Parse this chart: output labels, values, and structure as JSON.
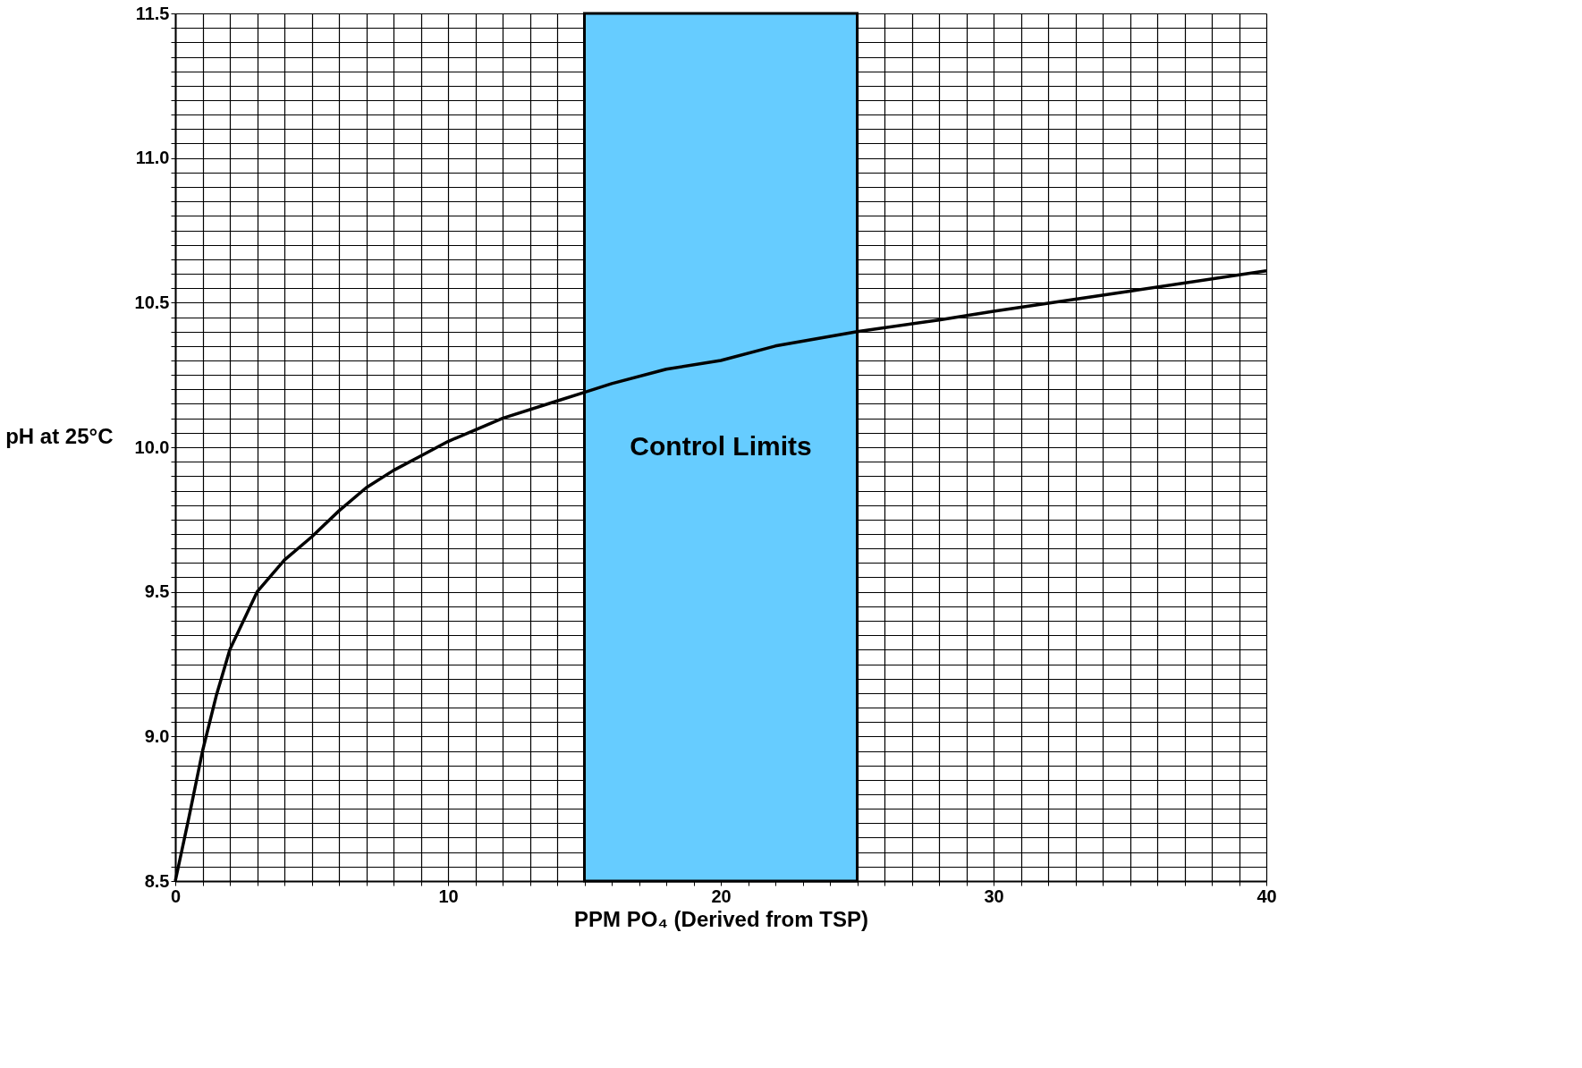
{
  "chart_data": {
    "type": "line",
    "xlabel": "PPM  PO₄  (Derived from TSP)",
    "ylabel": "pH at 25°C",
    "x": [
      0,
      0.5,
      1,
      1.5,
      2,
      3,
      4,
      5,
      6,
      7,
      8,
      9,
      10,
      11,
      12,
      14,
      15,
      16,
      18,
      20,
      22,
      25,
      28,
      30,
      35,
      40
    ],
    "series": [
      {
        "color": "#000000",
        "values": [
          8.5,
          8.72,
          8.95,
          9.14,
          9.3,
          9.5,
          9.61,
          9.69,
          9.78,
          9.86,
          9.92,
          9.97,
          10.02,
          10.06,
          10.1,
          10.16,
          10.19,
          10.22,
          10.27,
          10.3,
          10.35,
          10.4,
          10.44,
          10.47,
          10.54,
          10.61
        ]
      }
    ],
    "xlim": [
      0,
      40
    ],
    "ylim": [
      8.5,
      11.5
    ],
    "xticks": [
      0,
      {
        "value": 1,
        "label": null
      },
      {
        "value": 2,
        "label": null
      },
      {
        "value": 3,
        "label": null
      },
      {
        "value": 4,
        "label": null
      },
      {
        "value": 5,
        "label": null
      },
      {
        "value": 6,
        "label": null
      },
      {
        "value": 7,
        "label": null
      },
      {
        "value": 8,
        "label": null
      },
      {
        "value": 9,
        "label": null
      },
      10,
      {
        "value": 11,
        "label": null
      },
      {
        "value": 12,
        "label": null
      },
      {
        "value": 13,
        "label": null
      },
      {
        "value": 14,
        "label": null
      },
      {
        "value": 15,
        "label": null
      },
      {
        "value": 16,
        "label": null
      },
      {
        "value": 17,
        "label": null
      },
      {
        "value": 18,
        "label": null
      },
      {
        "value": 19,
        "label": null
      },
      20,
      {
        "value": 21,
        "label": null
      },
      {
        "value": 22,
        "label": null
      },
      {
        "value": 23,
        "label": null
      },
      {
        "value": 24,
        "label": null
      },
      {
        "value": 25,
        "label": null
      },
      {
        "value": 26,
        "label": null
      },
      {
        "value": 27,
        "label": null
      },
      {
        "value": 28,
        "label": null
      },
      {
        "value": 29,
        "label": null
      },
      30,
      {
        "value": 31,
        "label": null
      },
      {
        "value": 32,
        "label": null
      },
      {
        "value": 33,
        "label": null
      },
      {
        "value": 34,
        "label": null
      },
      {
        "value": 35,
        "label": null
      },
      {
        "value": 36,
        "label": null
      },
      {
        "value": 37,
        "label": null
      },
      {
        "value": 38,
        "label": null
      },
      {
        "value": 39,
        "label": null
      },
      40
    ],
    "yticks": [
      8.5,
      {
        "value": 8.55,
        "label": null
      },
      {
        "value": 8.6,
        "label": null
      },
      {
        "value": 8.65,
        "label": null
      },
      {
        "value": 8.7,
        "label": null
      },
      {
        "value": 8.75,
        "label": null
      },
      {
        "value": 8.8,
        "label": null
      },
      {
        "value": 8.85,
        "label": null
      },
      {
        "value": 8.9,
        "label": null
      },
      {
        "value": 8.95,
        "label": null
      },
      {
        "value": 9,
        "label": "9.0"
      },
      {
        "value": 9.05,
        "label": null
      },
      {
        "value": 9.1,
        "label": null
      },
      {
        "value": 9.15,
        "label": null
      },
      {
        "value": 9.2,
        "label": null
      },
      {
        "value": 9.25,
        "label": null
      },
      {
        "value": 9.3,
        "label": null
      },
      {
        "value": 9.35,
        "label": null
      },
      {
        "value": 9.4,
        "label": null
      },
      {
        "value": 9.45,
        "label": null
      },
      9.5,
      {
        "value": 9.55,
        "label": null
      },
      {
        "value": 9.6,
        "label": null
      },
      {
        "value": 9.65,
        "label": null
      },
      {
        "value": 9.7,
        "label": null
      },
      {
        "value": 9.75,
        "label": null
      },
      {
        "value": 9.8,
        "label": null
      },
      {
        "value": 9.85,
        "label": null
      },
      {
        "value": 9.9,
        "label": null
      },
      {
        "value": 9.95,
        "label": null
      },
      {
        "value": 10,
        "label": "10.0"
      },
      {
        "value": 10.05,
        "label": null
      },
      {
        "value": 10.1,
        "label": null
      },
      {
        "value": 10.15,
        "label": null
      },
      {
        "value": 10.2,
        "label": null
      },
      {
        "value": 10.25,
        "label": null
      },
      {
        "value": 10.3,
        "label": null
      },
      {
        "value": 10.35,
        "label": null
      },
      {
        "value": 10.4,
        "label": null
      },
      {
        "value": 10.45,
        "label": null
      },
      10.5,
      {
        "value": 10.55,
        "label": null
      },
      {
        "value": 10.6,
        "label": null
      },
      {
        "value": 10.65,
        "label": null
      },
      {
        "value": 10.7,
        "label": null
      },
      {
        "value": 10.75,
        "label": null
      },
      {
        "value": 10.8,
        "label": null
      },
      {
        "value": 10.85,
        "label": null
      },
      {
        "value": 10.9,
        "label": null
      },
      {
        "value": 10.95,
        "label": null
      },
      {
        "value": 11,
        "label": "11.0"
      },
      {
        "value": 11.05,
        "label": null
      },
      {
        "value": 11.1,
        "label": null
      },
      {
        "value": 11.15,
        "label": null
      },
      {
        "value": 11.2,
        "label": null
      },
      {
        "value": 11.25,
        "label": null
      },
      {
        "value": 11.3,
        "label": null
      },
      {
        "value": 11.35,
        "label": null
      },
      {
        "value": 11.4,
        "label": null
      },
      {
        "value": 11.45,
        "label": null
      },
      11.5
    ],
    "bands": [
      {
        "axis": "x",
        "from": 15,
        "to": 25,
        "label": "Control Limits",
        "color": "#66ccff"
      }
    ],
    "grid": true,
    "marker": "none",
    "line_style": "solid"
  }
}
